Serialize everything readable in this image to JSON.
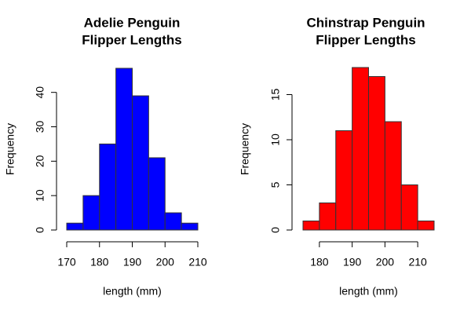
{
  "chart_data": [
    {
      "type": "histogram",
      "title": [
        "Adelie Penguin",
        "Flipper Lengths"
      ],
      "xlabel": "length (mm)",
      "ylabel": "Frequency",
      "bins": [
        170,
        175,
        180,
        185,
        190,
        195,
        200,
        205,
        210
      ],
      "values": [
        2,
        10,
        25,
        47,
        39,
        21,
        5,
        2
      ],
      "color": "#0000ff",
      "xlim": [
        170,
        210
      ],
      "ylim": [
        0,
        47
      ],
      "xticks": [
        170,
        180,
        190,
        200,
        210
      ],
      "yticks": [
        0,
        10,
        20,
        30,
        40
      ]
    },
    {
      "type": "histogram",
      "title": [
        "Chinstrap Penguin",
        "Flipper Lengths"
      ],
      "xlabel": "length (mm)",
      "ylabel": "Frequency",
      "bins": [
        175,
        180,
        185,
        190,
        195,
        200,
        205,
        210,
        215
      ],
      "values": [
        1,
        3,
        11,
        18,
        17,
        12,
        5,
        1
      ],
      "color": "#ff0000",
      "xlim": [
        175,
        215
      ],
      "ylim": [
        0,
        18
      ],
      "xticks": [
        180,
        190,
        200,
        210
      ],
      "yticks": [
        0,
        5,
        10,
        15
      ]
    }
  ]
}
